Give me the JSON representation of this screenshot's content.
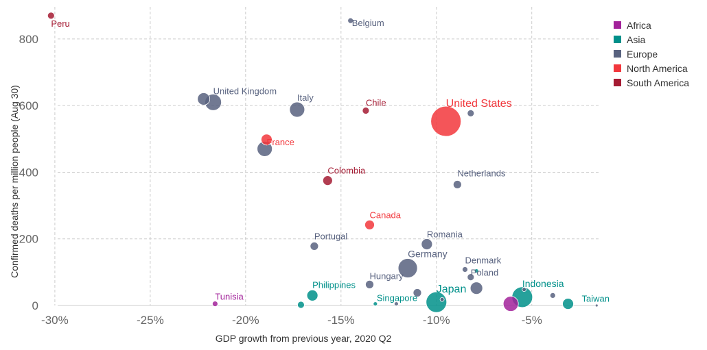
{
  "chart_data": {
    "type": "scatter",
    "title": "",
    "xlabel": "GDP growth from previous year, 2020 Q2",
    "ylabel": "Confirmed deaths per million people (Aug 30)",
    "xlim": [
      -30.5,
      -1.5
    ],
    "ylim": [
      0,
      880
    ],
    "x_ticks": [
      {
        "value": -30,
        "label": "-30%"
      },
      {
        "value": -25,
        "label": "-25%"
      },
      {
        "value": -20,
        "label": "-20%"
      },
      {
        "value": -15,
        "label": "-15%"
      },
      {
        "value": -10,
        "label": "-10%"
      },
      {
        "value": -5,
        "label": "-5%"
      }
    ],
    "y_ticks": [
      {
        "value": 0,
        "label": "0"
      },
      {
        "value": 200,
        "label": "200"
      },
      {
        "value": 400,
        "label": "400"
      },
      {
        "value": 600,
        "label": "600"
      },
      {
        "value": 800,
        "label": "800"
      }
    ],
    "grid": true,
    "legend_position": "top-right",
    "legend": [
      {
        "name": "Africa",
        "color": "#a2229a"
      },
      {
        "name": "Asia",
        "color": "#00908a"
      },
      {
        "name": "Europe",
        "color": "#58627f"
      },
      {
        "name": "North America",
        "color": "#f2373c"
      },
      {
        "name": "South America",
        "color": "#a51b33"
      }
    ],
    "points": [
      {
        "label": "Peru",
        "x": -30.2,
        "y": 870,
        "region": "South America",
        "size": 5,
        "label_dx": 0,
        "label_dy": 16,
        "label_anchor": "start",
        "label_size": 13
      },
      {
        "label": "Belgium",
        "x": -14.5,
        "y": 855,
        "region": "Europe",
        "size": 4,
        "label_dx": 2,
        "label_dy": 8,
        "label_anchor": "start",
        "label_size": 13
      },
      {
        "label": "United Kingdom",
        "x": -21.7,
        "y": 610,
        "region": "Europe",
        "size": 12,
        "label_dx": 0,
        "label_dy": -12,
        "label_anchor": "start",
        "label_size": 13
      },
      {
        "label": "",
        "x": -22.2,
        "y": 620,
        "region": "Europe",
        "size": 9
      },
      {
        "label": "Italy",
        "x": -17.3,
        "y": 588,
        "region": "Europe",
        "size": 11,
        "label_dx": 0,
        "label_dy": -13,
        "label_anchor": "start",
        "label_size": 13
      },
      {
        "label": "France",
        "x": -18.9,
        "y": 498,
        "region": "North America",
        "size": 8,
        "label_dx": 0,
        "label_dy": 8,
        "label_anchor": "start",
        "label_size": 13
      },
      {
        "label": "",
        "x": -19.0,
        "y": 470,
        "region": "Europe",
        "size": 11
      },
      {
        "label": "Chile",
        "x": -13.7,
        "y": 585,
        "region": "South America",
        "size": 5,
        "label_dx": 0,
        "label_dy": -7,
        "label_anchor": "start",
        "label_size": 13
      },
      {
        "label": "United States",
        "x": -9.5,
        "y": 553,
        "region": "North America",
        "size": 22,
        "label_dx": 0,
        "label_dy": -21,
        "label_anchor": "start",
        "label_size": 16
      },
      {
        "label": "",
        "x": -8.2,
        "y": 577,
        "region": "Europe",
        "size": 5
      },
      {
        "label": "Colombia",
        "x": -15.7,
        "y": 375,
        "region": "South America",
        "size": 7,
        "label_dx": 0,
        "label_dy": -10,
        "label_anchor": "start",
        "label_size": 13
      },
      {
        "label": "Netherlands",
        "x": -8.9,
        "y": 363,
        "region": "Europe",
        "size": 6,
        "label_dx": 0,
        "label_dy": -12,
        "label_anchor": "start",
        "label_size": 13
      },
      {
        "label": "Canada",
        "x": -13.5,
        "y": 242,
        "region": "North America",
        "size": 7,
        "label_dx": 0,
        "label_dy": -10,
        "label_anchor": "start",
        "label_size": 13
      },
      {
        "label": "Portugal",
        "x": -16.4,
        "y": 178,
        "region": "Europe",
        "size": 6,
        "label_dx": 0,
        "label_dy": -10,
        "label_anchor": "start",
        "label_size": 13
      },
      {
        "label": "Romania",
        "x": -10.5,
        "y": 184,
        "region": "Europe",
        "size": 8,
        "label_dx": 0,
        "label_dy": -10,
        "label_anchor": "start",
        "label_size": 13
      },
      {
        "label": "Germany",
        "x": -11.5,
        "y": 112,
        "region": "Europe",
        "size": 14,
        "label_dx": 0,
        "label_dy": -16,
        "label_anchor": "start",
        "label_size": 14
      },
      {
        "label": "Denmark",
        "x": -8.5,
        "y": 108,
        "region": "Europe",
        "size": 4,
        "label_dx": 0,
        "label_dy": -9,
        "label_anchor": "start",
        "label_size": 13
      },
      {
        "label": "",
        "x": -7.9,
        "y": 104,
        "region": "Asia",
        "size": 3
      },
      {
        "label": "Hungary",
        "x": -13.5,
        "y": 63,
        "region": "Europe",
        "size": 6,
        "label_dx": 0,
        "label_dy": -8,
        "label_anchor": "start",
        "label_size": 13
      },
      {
        "label": "Poland",
        "x": -8.2,
        "y": 85,
        "region": "Europe",
        "size": 5,
        "label_dx": 0,
        "label_dy": -2,
        "label_anchor": "start",
        "label_size": 13
      },
      {
        "label": "",
        "x": -7.9,
        "y": 52,
        "region": "Europe",
        "size": 9
      },
      {
        "label": "Japan",
        "x": -10.0,
        "y": 10,
        "region": "Asia",
        "size": 15,
        "label_dx": 0,
        "label_dy": -14,
        "label_anchor": "start",
        "label_size": 16
      },
      {
        "label": "Philippines",
        "x": -16.5,
        "y": 30,
        "region": "Asia",
        "size": 8,
        "label_dx": 0,
        "label_dy": -11,
        "label_anchor": "start",
        "label_size": 13
      },
      {
        "label": "Singapore",
        "x": -13.2,
        "y": 5,
        "region": "Asia",
        "size": 3,
        "label_dx": 2,
        "label_dy": -4,
        "label_anchor": "start",
        "label_size": 13
      },
      {
        "label": "",
        "x": -12.1,
        "y": 5,
        "region": "Europe",
        "size": 3
      },
      {
        "label": "",
        "x": -11.0,
        "y": 38,
        "region": "Europe",
        "size": 6
      },
      {
        "label": "",
        "x": -9.7,
        "y": 18,
        "region": "Europe",
        "size": 3
      },
      {
        "label": "",
        "x": -17.1,
        "y": 2,
        "region": "Asia",
        "size": 5
      },
      {
        "label": "Tunisia",
        "x": -21.6,
        "y": 5,
        "region": "Africa",
        "size": 4,
        "label_dx": 0,
        "label_dy": -6,
        "label_anchor": "start",
        "label_size": 13
      },
      {
        "label": "",
        "x": -6.1,
        "y": 5,
        "region": "Africa",
        "size": 11
      },
      {
        "label": "Indonesia",
        "x": -5.5,
        "y": 25,
        "region": "Asia",
        "size": 15,
        "label_dx": 0,
        "label_dy": -15,
        "label_anchor": "start",
        "label_size": 14
      },
      {
        "label": "",
        "x": -5.4,
        "y": 48,
        "region": "Europe",
        "size": 3
      },
      {
        "label": "",
        "x": -3.9,
        "y": 30,
        "region": "Europe",
        "size": 4
      },
      {
        "label": "Taiwan",
        "x": -3.1,
        "y": 5,
        "region": "Asia",
        "size": 8,
        "label_dx": 20,
        "label_dy": -3,
        "label_anchor": "start",
        "label_size": 13
      },
      {
        "label": "",
        "x": -1.6,
        "y": 0,
        "region": "Europe",
        "size": 2
      }
    ]
  }
}
